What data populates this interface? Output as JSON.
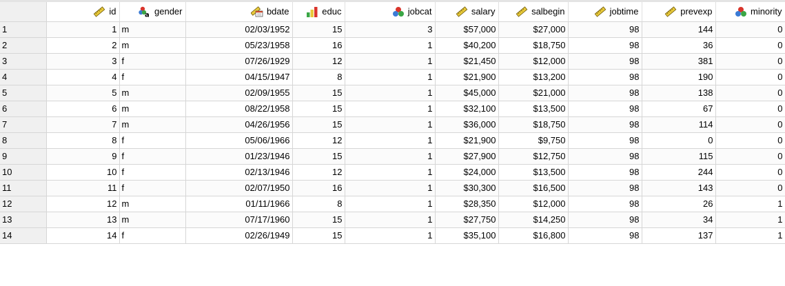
{
  "columns": [
    {
      "label": "id",
      "icon": "scale-ruler-icon"
    },
    {
      "label": "gender",
      "icon": "nominal-string-icon"
    },
    {
      "label": "bdate",
      "icon": "date-scale-icon"
    },
    {
      "label": "educ",
      "icon": "ordinal-bars-icon"
    },
    {
      "label": "jobcat",
      "icon": "nominal-circles-icon"
    },
    {
      "label": "salary",
      "icon": "scale-ruler-icon"
    },
    {
      "label": "salbegin",
      "icon": "scale-ruler-icon"
    },
    {
      "label": "jobtime",
      "icon": "scale-ruler-icon"
    },
    {
      "label": "prevexp",
      "icon": "scale-ruler-icon"
    },
    {
      "label": "minority",
      "icon": "nominal-circles-icon"
    }
  ],
  "rows": [
    {
      "n": "1",
      "cells": [
        "1",
        "m",
        "02/03/1952",
        "15",
        "3",
        "$57,000",
        "$27,000",
        "98",
        "144",
        "0"
      ]
    },
    {
      "n": "2",
      "cells": [
        "2",
        "m",
        "05/23/1958",
        "16",
        "1",
        "$40,200",
        "$18,750",
        "98",
        "36",
        "0"
      ]
    },
    {
      "n": "3",
      "cells": [
        "3",
        "f",
        "07/26/1929",
        "12",
        "1",
        "$21,450",
        "$12,000",
        "98",
        "381",
        "0"
      ]
    },
    {
      "n": "4",
      "cells": [
        "4",
        "f",
        "04/15/1947",
        "8",
        "1",
        "$21,900",
        "$13,200",
        "98",
        "190",
        "0"
      ]
    },
    {
      "n": "5",
      "cells": [
        "5",
        "m",
        "02/09/1955",
        "15",
        "1",
        "$45,000",
        "$21,000",
        "98",
        "138",
        "0"
      ]
    },
    {
      "n": "6",
      "cells": [
        "6",
        "m",
        "08/22/1958",
        "15",
        "1",
        "$32,100",
        "$13,500",
        "98",
        "67",
        "0"
      ]
    },
    {
      "n": "7",
      "cells": [
        "7",
        "m",
        "04/26/1956",
        "15",
        "1",
        "$36,000",
        "$18,750",
        "98",
        "114",
        "0"
      ]
    },
    {
      "n": "8",
      "cells": [
        "8",
        "f",
        "05/06/1966",
        "12",
        "1",
        "$21,900",
        "$9,750",
        "98",
        "0",
        "0"
      ]
    },
    {
      "n": "9",
      "cells": [
        "9",
        "f",
        "01/23/1946",
        "15",
        "1",
        "$27,900",
        "$12,750",
        "98",
        "115",
        "0"
      ]
    },
    {
      "n": "10",
      "cells": [
        "10",
        "f",
        "02/13/1946",
        "12",
        "1",
        "$24,000",
        "$13,500",
        "98",
        "244",
        "0"
      ]
    },
    {
      "n": "11",
      "cells": [
        "11",
        "f",
        "02/07/1950",
        "16",
        "1",
        "$30,300",
        "$16,500",
        "98",
        "143",
        "0"
      ]
    },
    {
      "n": "12",
      "cells": [
        "12",
        "m",
        "01/11/1966",
        "8",
        "1",
        "$28,350",
        "$12,000",
        "98",
        "26",
        "1"
      ]
    },
    {
      "n": "13",
      "cells": [
        "13",
        "m",
        "07/17/1960",
        "15",
        "1",
        "$27,750",
        "$14,250",
        "98",
        "34",
        "1"
      ]
    },
    {
      "n": "14",
      "cells": [
        "14",
        "f",
        "02/26/1949",
        "15",
        "1",
        "$35,100",
        "$16,800",
        "98",
        "137",
        "1"
      ]
    }
  ]
}
